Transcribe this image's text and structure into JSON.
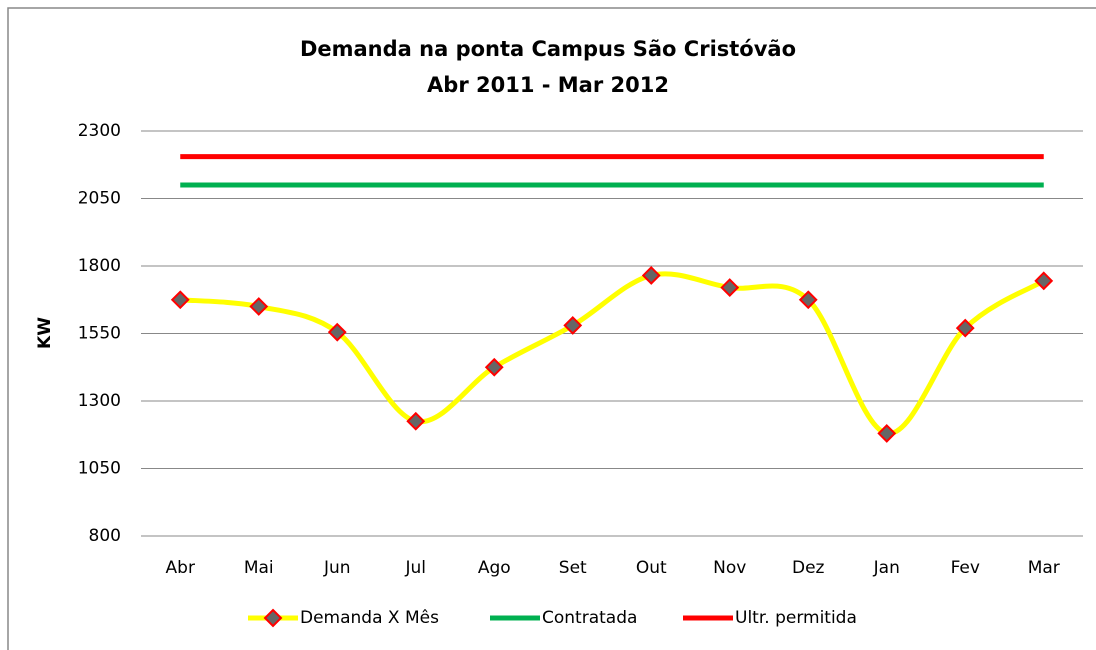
{
  "chart_data": {
    "type": "line",
    "title": "Demanda na ponta Campus São Cristóvão",
    "subtitle": "Abr 2011  -  Mar 2012",
    "y_label": "KW",
    "categories": [
      "Abr",
      "Mai",
      "Jun",
      "Jul",
      "Ago",
      "Set",
      "Out",
      "Nov",
      "Dez",
      "Jan",
      "Fev",
      "Mar"
    ],
    "series": [
      {
        "name": "Demanda X Mês",
        "color": "#ffff00",
        "marker_color": "#666666",
        "marker_edge": "#ff0000",
        "smooth": true,
        "values": [
          1675,
          1650,
          1555,
          1225,
          1425,
          1580,
          1765,
          1720,
          1675,
          1180,
          1570,
          1745
        ]
      },
      {
        "name": "Contratada",
        "color": "#00b050",
        "values": [
          2100,
          2100,
          2100,
          2100,
          2100,
          2100,
          2100,
          2100,
          2100,
          2100,
          2100,
          2100
        ]
      },
      {
        "name": "Ultr. permitida",
        "color": "#ff0000",
        "values": [
          2205,
          2205,
          2205,
          2205,
          2205,
          2205,
          2205,
          2205,
          2205,
          2205,
          2205,
          2205
        ]
      }
    ],
    "ylim": [
      800,
      2300
    ],
    "yticks": [
      800,
      1050,
      1300,
      1550,
      1800,
      2050,
      2300
    ],
    "grid": true,
    "legend": "bottom"
  }
}
